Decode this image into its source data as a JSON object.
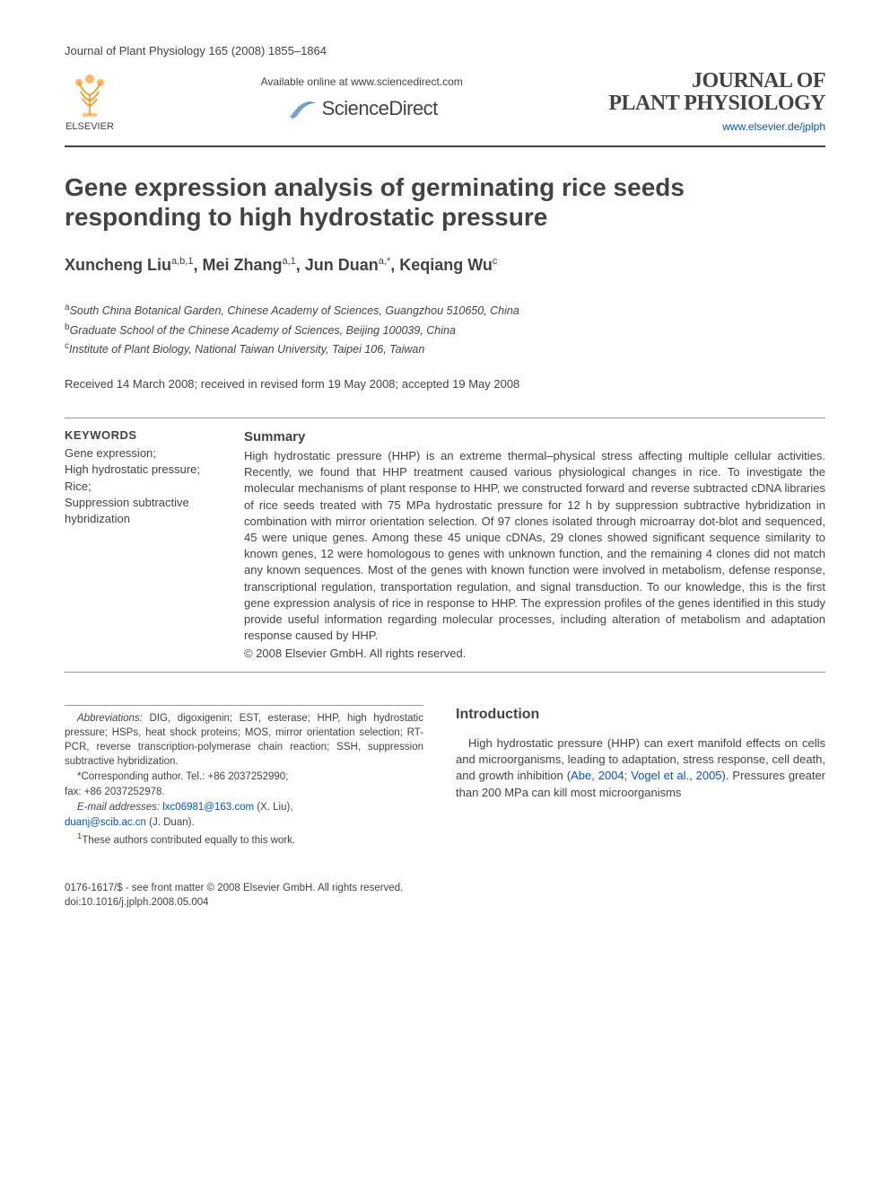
{
  "header": {
    "journal_ref": "Journal of Plant Physiology 165 (2008) 1855–1864"
  },
  "banner": {
    "elsevier_label": "ELSEVIER",
    "sd_available": "Available online at www.sciencedirect.com",
    "sd_name": "ScienceDirect",
    "journal_name_line1": "JOURNAL OF",
    "journal_name_line2": "PLANT PHYSIOLOGY",
    "journal_url": "www.elsevier.de/jplph"
  },
  "article": {
    "title": "Gene expression analysis of germinating rice seeds responding to high hydrostatic pressure",
    "authors_html": "Xuncheng Liu<sup>a,b,1</sup>, Mei Zhang<sup>a,1</sup>, Jun Duan<sup>a,*</sup>, Keqiang Wu<sup>c</sup>",
    "affiliations": [
      {
        "sup": "a",
        "text": "South China Botanical Garden, Chinese Academy of Sciences, Guangzhou 510650, China"
      },
      {
        "sup": "b",
        "text": "Graduate School of the Chinese Academy of Sciences, Beijing 100039, China"
      },
      {
        "sup": "c",
        "text": "Institute of Plant Biology, National Taiwan University, Taipei 106, Taiwan"
      }
    ],
    "dates": "Received 14 March 2008; received in revised form 19 May 2008; accepted 19 May 2008"
  },
  "keywords": {
    "heading": "KEYWORDS",
    "list": "Gene expression;\nHigh hydrostatic pressure;\nRice;\nSuppression subtractive hybridization"
  },
  "summary": {
    "heading": "Summary",
    "text": "High hydrostatic pressure (HHP) is an extreme thermal–physical stress affecting multiple cellular activities. Recently, we found that HHP treatment caused various physiological changes in rice. To investigate the molecular mechanisms of plant response to HHP, we constructed forward and reverse subtracted cDNA libraries of rice seeds treated with 75 MPa hydrostatic pressure for 12 h by suppression subtractive hybridization in combination with mirror orientation selection. Of 97 clones isolated through microarray dot-blot and sequenced, 45 were unique genes. Among these 45 unique cDNAs, 29 clones showed significant sequence similarity to known genes, 12 were homologous to genes with unknown function, and the remaining 4 clones did not match any known sequences. Most of the genes with known function were involved in metabolism, defense response, transcriptional regulation, transportation regulation, and signal transduction. To our knowledge, this is the first gene expression analysis of rice in response to HHP. The expression profiles of the genes identified in this study provide useful information regarding molecular processes, including alteration of metabolism and adaptation response caused by HHP.",
    "copyright": "© 2008 Elsevier GmbH. All rights reserved."
  },
  "footnotes": {
    "abbrev_label": "Abbreviations:",
    "abbrev_text": " DIG, digoxigenin; EST, esterase; HHP, high hydrostatic pressure; HSPs, heat shock proteins; MOS, mirror orientation selection; RT-PCR, reverse transcription-polymerase chain reaction; SSH, suppression subtractive hybridization.",
    "corr": "*Corresponding author. Tel.: +86 2037252990;",
    "fax": "fax: +86 2037252978.",
    "email_label": "E-mail addresses:",
    "email1": "lxc06981@163.com",
    "email1_who": " (X. Liu),",
    "email2": "duanj@scib.ac.cn",
    "email2_who": " (J. Duan).",
    "equal": "1These authors contributed equally to this work."
  },
  "intro": {
    "heading": "Introduction",
    "text_pre": "High hydrostatic pressure (HHP) can exert manifold effects on cells and microorganisms, leading to adaptation, stress response, cell death, and growth inhibition (",
    "cite1": "Abe, 2004",
    "cite_sep": "; ",
    "cite2": "Vogel et al., 2005",
    "text_post": "). Pressures greater than 200 MPa can kill most microorganisms"
  },
  "page_foot": {
    "front_matter": "0176-1617/$ - see front matter © 2008 Elsevier GmbH. All rights reserved.",
    "doi": "doi:10.1016/j.jplph.2008.05.004"
  },
  "colors": {
    "text": "#434343",
    "link": "#0055cc",
    "rule": "#434343",
    "rule_thin": "#999999",
    "elsevier_orange": "#ff8a00",
    "sd_blue": "#4a7ab5"
  }
}
